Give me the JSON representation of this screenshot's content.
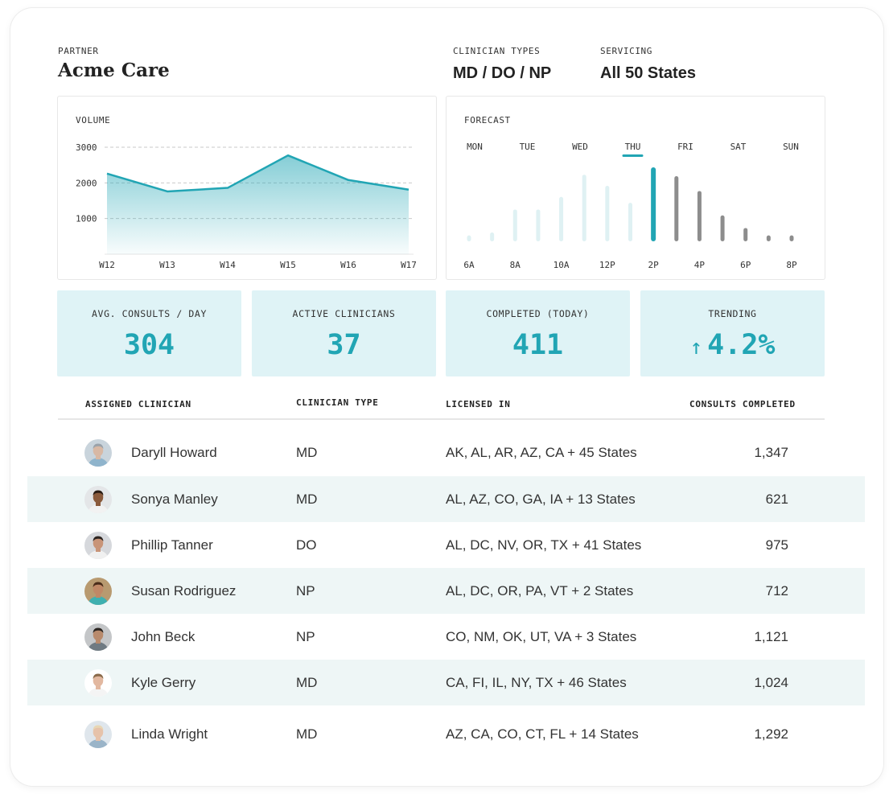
{
  "header": {
    "partner_label": "PARTNER",
    "partner_name": "Acme Care",
    "clinician_types_label": "CLINICIAN TYPES",
    "clinician_types_value": "MD / DO / NP",
    "servicing_label": "SERVICING",
    "servicing_value": "All 50 States"
  },
  "volume": {
    "label": "VOLUME",
    "chart_data": {
      "type": "area",
      "x": [
        "W12",
        "W13",
        "W14",
        "W15",
        "W16",
        "W17"
      ],
      "values": [
        2260,
        1760,
        1860,
        2770,
        2080,
        1810
      ],
      "yticks": [
        1000,
        2000,
        3000
      ],
      "ylim": [
        0,
        3000
      ],
      "grid": "horizontal-dashed",
      "colors": {
        "line": "#21a5b4",
        "fill": "#21a5b4"
      }
    }
  },
  "forecast": {
    "label": "FORECAST",
    "days": [
      "MON",
      "TUE",
      "WED",
      "THU",
      "FRI",
      "SAT",
      "SUN"
    ],
    "selected_day": "THU",
    "chart_data": {
      "type": "bar",
      "hours": [
        "6A",
        "7A",
        "8A",
        "9A",
        "10A",
        "11A",
        "12P",
        "1P",
        "2P",
        "3P",
        "4P",
        "5P",
        "6P",
        "7P",
        "8P"
      ],
      "hour_ticks": [
        "6A",
        "8A",
        "10A",
        "12P",
        "2P",
        "4P",
        "6P",
        "8P"
      ],
      "values": [
        0.08,
        0.12,
        0.43,
        0.43,
        0.6,
        0.9,
        0.75,
        0.52,
        1.0,
        0.88,
        0.68,
        0.35,
        0.18,
        0.08,
        0.08
      ],
      "current_hour": "2P",
      "colors": {
        "past": "#dff1f3",
        "current": "#21a5b4",
        "future": "#8d8d8d"
      }
    }
  },
  "kpis": [
    {
      "label": "AVG. CONSULTS / DAY",
      "value": "304"
    },
    {
      "label": "ACTIVE CLINICIANS",
      "value": "37"
    },
    {
      "label": "COMPLETED (TODAY)",
      "value": "411"
    },
    {
      "label": "TRENDING",
      "arrow": "↑",
      "value": "4.2%"
    }
  ],
  "table": {
    "columns": {
      "clinician": "ASSIGNED CLINICIAN",
      "type": "CLINICIAN TYPE",
      "licensed": "LICENSED IN",
      "consults": "CONSULTS COMPLETED"
    },
    "rows": [
      {
        "name": "Daryll Howard",
        "type": "MD",
        "licensed": "AK, AL, AR, AZ, CA + 45 States",
        "consults": "1,347",
        "avatar": {
          "skin": "#d8b8a4",
          "hair": "#9aa2aa",
          "shirt": "#8fb4cc",
          "bg": "#c9d4dc"
        }
      },
      {
        "name": "Sonya Manley",
        "type": "MD",
        "licensed": "AL, AZ, CO, GA, IA + 13 States",
        "consults": "621",
        "avatar": {
          "skin": "#8a5a3c",
          "hair": "#2a1c14",
          "shirt": "#f2f2f2",
          "bg": "#e4e6e8"
        }
      },
      {
        "name": "Phillip Tanner",
        "type": "DO",
        "licensed": "AL, DC, NV, OR, TX + 41 States",
        "consults": "975",
        "avatar": {
          "skin": "#c89478",
          "hair": "#2b2420",
          "shirt": "#f0f0f0",
          "bg": "#d6d8dc"
        }
      },
      {
        "name": "Susan Rodriguez",
        "type": "NP",
        "licensed": "AL, DC, OR, PA, VT + 2 States",
        "consults": "712",
        "avatar": {
          "skin": "#c08866",
          "hair": "#4a2c1a",
          "shirt": "#3fb0b0",
          "bg": "#b89a70"
        }
      },
      {
        "name": "John Beck",
        "type": "NP",
        "licensed": "CO, NM, OK, UT, VA + 3 States",
        "consults": "1,121",
        "avatar": {
          "skin": "#b88a6c",
          "hair": "#2a2420",
          "shirt": "#6f7a82",
          "bg": "#c4c6c8"
        }
      },
      {
        "name": "Kyle Gerry",
        "type": "MD",
        "licensed": "CA, FI, IL, NY, TX + 46 States",
        "consults": "1,024",
        "avatar": {
          "skin": "#e2b8a0",
          "hair": "#8a6a4a",
          "shirt": "#f4f4f4",
          "bg": "#ffffff"
        }
      },
      {
        "name": "Linda Wright",
        "type": "MD",
        "licensed": "AZ, CA, CO, CT, FL + 14 States",
        "consults": "1,292",
        "avatar": {
          "skin": "#e6c2aa",
          "hair": "#e8d6b4",
          "shirt": "#9ab4c8",
          "bg": "#dfe6ec"
        }
      }
    ]
  },
  "colors": {
    "accent": "#21a5b4",
    "kpi_bg": "#dff3f6",
    "row_alt": "#eef6f6"
  }
}
